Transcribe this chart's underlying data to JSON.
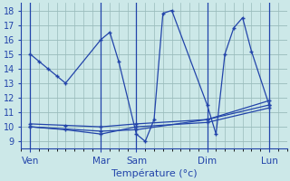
{
  "bg_color": "#cce8e8",
  "grid_color": "#99bbbb",
  "line_color": "#2244aa",
  "ylim": [
    8.5,
    18.5
  ],
  "yticks": [
    9,
    10,
    11,
    12,
    13,
    14,
    15,
    16,
    17,
    18
  ],
  "xlabel": "Température (°c)",
  "xlabel_fontsize": 8,
  "day_labels": [
    "Ven",
    "Mar",
    "Sam",
    "Dim",
    "Lun"
  ],
  "day_x": [
    0,
    8,
    12,
    20,
    27
  ],
  "xlim": [
    -1,
    29
  ],
  "vline_x": [
    0,
    8,
    12,
    20,
    27
  ],
  "series": [
    {
      "x": [
        0,
        1,
        2,
        3,
        4,
        8,
        9,
        10,
        12,
        13,
        14,
        15,
        16,
        20,
        21,
        22,
        23,
        24,
        25,
        27
      ],
      "y": [
        15,
        14.5,
        14,
        13.5,
        13,
        16,
        16.5,
        14.5,
        9.5,
        9,
        10.5,
        17.8,
        18,
        11.5,
        9.5,
        15,
        16.8,
        17.5,
        15.2,
        11.5
      ]
    },
    {
      "x": [
        0,
        4,
        8,
        12,
        20,
        27
      ],
      "y": [
        10.2,
        10.1,
        10.0,
        10.2,
        10.5,
        11.5
      ]
    },
    {
      "x": [
        0,
        4,
        8,
        12,
        20,
        27
      ],
      "y": [
        10.0,
        9.8,
        9.5,
        10.0,
        10.3,
        11.3
      ]
    },
    {
      "x": [
        0,
        8,
        12,
        20,
        27
      ],
      "y": [
        10.0,
        9.7,
        9.8,
        10.5,
        11.8
      ]
    }
  ]
}
